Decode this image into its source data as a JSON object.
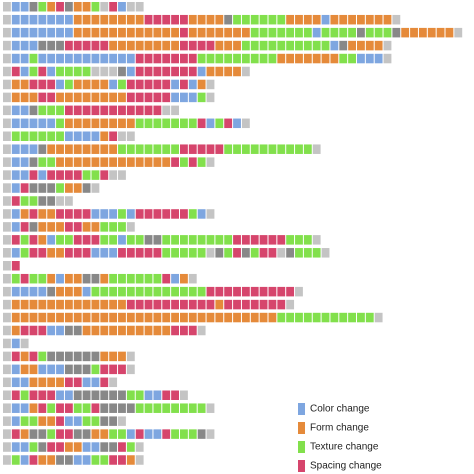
{
  "chart_data": {
    "type": "sequence",
    "legend": [
      {
        "code": "B",
        "label": "Color change",
        "color": "#7ea6e0"
      },
      {
        "code": "F",
        "label": "Form change",
        "color": "#e58a3a"
      },
      {
        "code": "T",
        "label": "Texture change",
        "color": "#82e04c"
      },
      {
        "code": "S",
        "label": "Spacing change",
        "color": "#d6456c"
      }
    ],
    "other_colors": {
      "G": "#c4c4c4",
      "D": "#888888"
    },
    "rows": [
      [
        "G",
        "B",
        "B",
        "D",
        "T",
        "F",
        "S",
        "D",
        "F",
        "F",
        "T",
        "G",
        "S",
        "B",
        "G",
        "G"
      ],
      [
        "G",
        "B",
        "B",
        "B",
        "B",
        "B",
        "B",
        "B",
        "F",
        "F",
        "F",
        "F",
        "F",
        "F",
        "F",
        "F",
        "S",
        "S",
        "S",
        "S",
        "S",
        "F",
        "F",
        "F",
        "F",
        "D",
        "T",
        "T",
        "T",
        "T",
        "T",
        "T",
        "F",
        "F",
        "F",
        "F",
        "B",
        "F",
        "F",
        "F",
        "F",
        "F",
        "F",
        "F",
        "G"
      ],
      [
        "G",
        "B",
        "B",
        "B",
        "B",
        "B",
        "B",
        "B",
        "F",
        "F",
        "F",
        "F",
        "F",
        "F",
        "F",
        "F",
        "F",
        "F",
        "F",
        "F",
        "S",
        "F",
        "F",
        "F",
        "F",
        "F",
        "F",
        "F",
        "T",
        "T",
        "T",
        "T",
        "T",
        "T",
        "T",
        "B",
        "T",
        "T",
        "T",
        "T",
        "D",
        "T",
        "T",
        "T",
        "D",
        "F",
        "F",
        "F",
        "F",
        "F",
        "F",
        "G"
      ],
      [
        "G",
        "B",
        "B",
        "B",
        "D",
        "D",
        "D",
        "S",
        "S",
        "S",
        "S",
        "S",
        "F",
        "F",
        "F",
        "F",
        "F",
        "F",
        "F",
        "F",
        "S",
        "S",
        "S",
        "S",
        "F",
        "F",
        "F",
        "T",
        "T",
        "T",
        "T",
        "T",
        "T",
        "T",
        "T",
        "T",
        "T",
        "B",
        "D",
        "F",
        "F",
        "F",
        "F",
        "G"
      ],
      [
        "G",
        "B",
        "B",
        "T",
        "B",
        "B",
        "B",
        "B",
        "B",
        "B",
        "B",
        "B",
        "B",
        "B",
        "B",
        "S",
        "S",
        "S",
        "S",
        "S",
        "S",
        "S",
        "T",
        "T",
        "T",
        "T",
        "T",
        "T",
        "T",
        "T",
        "T",
        "F",
        "F",
        "F",
        "F",
        "F",
        "F",
        "F",
        "T",
        "T",
        "B",
        "B",
        "B",
        "G"
      ],
      [
        "G",
        "S",
        "B",
        "T",
        "S",
        "B",
        "T",
        "T",
        "T",
        "T",
        "G",
        "G",
        "G",
        "D",
        "B",
        "S",
        "S",
        "S",
        "S",
        "S",
        "S",
        "S",
        "B",
        "F",
        "F",
        "F",
        "F",
        "G"
      ],
      [
        "G",
        "F",
        "F",
        "S",
        "S",
        "S",
        "B",
        "T",
        "F",
        "F",
        "F",
        "F",
        "B",
        "T",
        "S",
        "S",
        "S",
        "S",
        "S",
        "B",
        "S",
        "B",
        "F",
        "G"
      ],
      [
        "G",
        "F",
        "F",
        "F",
        "S",
        "S",
        "F",
        "F",
        "F",
        "F",
        "F",
        "F",
        "F",
        "F",
        "S",
        "S",
        "S",
        "S",
        "S",
        "B",
        "B",
        "B",
        "T",
        "G"
      ],
      [
        "G",
        "B",
        "B",
        "D",
        "T",
        "T",
        "T",
        "S",
        "S",
        "S",
        "S",
        "S",
        "S",
        "S",
        "S",
        "S",
        "S",
        "S",
        "G",
        "G"
      ],
      [
        "G",
        "B",
        "B",
        "B",
        "B",
        "B",
        "T",
        "F",
        "F",
        "F",
        "F",
        "F",
        "F",
        "F",
        "F",
        "T",
        "T",
        "T",
        "T",
        "T",
        "T",
        "T",
        "S",
        "B",
        "T",
        "S",
        "B",
        "G"
      ],
      [
        "G",
        "T",
        "T",
        "T",
        "T",
        "T",
        "T",
        "B",
        "B",
        "B",
        "B",
        "F",
        "S",
        "G",
        "G"
      ],
      [
        "G",
        "B",
        "B",
        "B",
        "D",
        "F",
        "F",
        "F",
        "F",
        "F",
        "F",
        "F",
        "F",
        "T",
        "T",
        "T",
        "T",
        "T",
        "T",
        "T",
        "S",
        "S",
        "S",
        "S",
        "S",
        "T",
        "T",
        "T",
        "T",
        "T",
        "T",
        "T",
        "T",
        "T",
        "T",
        "G"
      ],
      [
        "G",
        "B",
        "B",
        "D",
        "T",
        "T",
        "F",
        "F",
        "F",
        "F",
        "F",
        "F",
        "F",
        "F",
        "F",
        "F",
        "F",
        "F",
        "F",
        "S",
        "T",
        "S",
        "T",
        "G"
      ],
      [
        "G",
        "B",
        "B",
        "S",
        "B",
        "S",
        "S",
        "S",
        "S",
        "T",
        "T",
        "S",
        "G",
        "G"
      ],
      [
        "G",
        "B",
        "S",
        "D",
        "D",
        "D",
        "T",
        "F",
        "F",
        "D",
        "G"
      ],
      [
        "G",
        "S",
        "T",
        "T",
        "D",
        "D",
        "G",
        "G"
      ],
      [
        "G",
        "B",
        "F",
        "S",
        "F",
        "F",
        "S",
        "S",
        "S",
        "S",
        "B",
        "B",
        "B",
        "T",
        "B",
        "S",
        "S",
        "S",
        "S",
        "S",
        "S",
        "T",
        "B",
        "G"
      ],
      [
        "G",
        "B",
        "S",
        "D",
        "F",
        "F",
        "F",
        "S",
        "S",
        "F",
        "F",
        "T",
        "T",
        "T",
        "G"
      ],
      [
        "G",
        "S",
        "T",
        "S",
        "F",
        "B",
        "T",
        "T",
        "S",
        "S",
        "S",
        "T",
        "T",
        "B",
        "T",
        "T",
        "D",
        "D",
        "T",
        "T",
        "T",
        "T",
        "T",
        "T",
        "T",
        "T",
        "S",
        "S",
        "S",
        "S",
        "S",
        "S",
        "T",
        "T",
        "T",
        "G"
      ],
      [
        "G",
        "B",
        "T",
        "S",
        "S",
        "F",
        "F",
        "S",
        "S",
        "S",
        "B",
        "B",
        "B",
        "S",
        "S",
        "S",
        "S",
        "S",
        "T",
        "T",
        "T",
        "T",
        "T",
        "G",
        "D",
        "T",
        "S",
        "D",
        "T",
        "S",
        "S",
        "G",
        "D",
        "T",
        "T",
        "T",
        "G"
      ],
      [
        "G",
        "S"
      ],
      [
        "G",
        "T",
        "S",
        "T",
        "T",
        "F",
        "B",
        "F",
        "F",
        "D",
        "D",
        "F",
        "T",
        "T",
        "T",
        "T",
        "T",
        "T",
        "S",
        "B",
        "F",
        "G"
      ],
      [
        "G",
        "B",
        "B",
        "B",
        "B",
        "D",
        "F",
        "F",
        "F",
        "B",
        "T",
        "T",
        "T",
        "T",
        "T",
        "T",
        "T",
        "T",
        "T",
        "T",
        "T",
        "T",
        "T",
        "S",
        "S",
        "S",
        "S",
        "S",
        "S",
        "S",
        "S",
        "S",
        "S",
        "G"
      ],
      [
        "G",
        "F",
        "F",
        "F",
        "F",
        "F",
        "F",
        "F",
        "F",
        "F",
        "F",
        "F",
        "F",
        "F",
        "S",
        "S",
        "S",
        "S",
        "S",
        "S",
        "S",
        "S",
        "S",
        "S",
        "F",
        "S",
        "S",
        "S",
        "S",
        "S",
        "S",
        "S",
        "G"
      ],
      [
        "G",
        "F",
        "F",
        "F",
        "F",
        "F",
        "F",
        "F",
        "F",
        "F",
        "F",
        "F",
        "F",
        "F",
        "F",
        "F",
        "F",
        "F",
        "F",
        "F",
        "F",
        "F",
        "F",
        "F",
        "F",
        "F",
        "F",
        "F",
        "F",
        "F",
        "F",
        "T",
        "T",
        "T",
        "T",
        "T",
        "T",
        "T",
        "T",
        "T",
        "T",
        "T",
        "G"
      ],
      [
        "G",
        "F",
        "S",
        "S",
        "S",
        "B",
        "B",
        "D",
        "D",
        "F",
        "F",
        "F",
        "F",
        "F",
        "F",
        "F",
        "F",
        "F",
        "F",
        "S",
        "S",
        "S",
        "G"
      ],
      [
        "G",
        "B",
        "G"
      ],
      [
        "G",
        "S",
        "F",
        "S",
        "T",
        "D",
        "D",
        "D",
        "D",
        "D",
        "D",
        "F",
        "F",
        "F",
        "G"
      ],
      [
        "G",
        "B",
        "F",
        "F",
        "B",
        "B",
        "B",
        "D",
        "D",
        "D",
        "T",
        "S",
        "S",
        "S",
        "G"
      ],
      [
        "G",
        "B",
        "B",
        "F",
        "F",
        "F",
        "F",
        "S",
        "S",
        "B",
        "B",
        "S",
        "G"
      ],
      [
        "G",
        "S",
        "T",
        "S",
        "S",
        "S",
        "B",
        "B",
        "D",
        "D",
        "D",
        "D",
        "D",
        "D",
        "T",
        "T",
        "B",
        "B",
        "S",
        "S",
        "G"
      ],
      [
        "G",
        "B",
        "B",
        "F",
        "S",
        "T",
        "S",
        "S",
        "T",
        "T",
        "S",
        "D",
        "D",
        "D",
        "D",
        "T",
        "T",
        "T",
        "T",
        "T",
        "T",
        "T",
        "T",
        "G"
      ],
      [
        "G",
        "B",
        "T",
        "T",
        "F",
        "F",
        "S",
        "B",
        "B",
        "T",
        "T",
        "D",
        "D",
        "G"
      ],
      [
        "G",
        "S",
        "F",
        "D",
        "D",
        "T",
        "S",
        "S",
        "D",
        "D",
        "F",
        "F",
        "T",
        "T",
        "B",
        "S",
        "B",
        "B",
        "S",
        "T",
        "T",
        "T",
        "D",
        "G"
      ],
      [
        "G",
        "B",
        "B",
        "T",
        "D",
        "S",
        "S",
        "F",
        "F",
        "B",
        "B",
        "D",
        "D",
        "S",
        "T",
        "G"
      ],
      [
        "G",
        "T",
        "B",
        "S",
        "F",
        "F",
        "D",
        "D",
        "B",
        "B",
        "T",
        "T",
        "S",
        "S",
        "F",
        "G"
      ]
    ]
  }
}
